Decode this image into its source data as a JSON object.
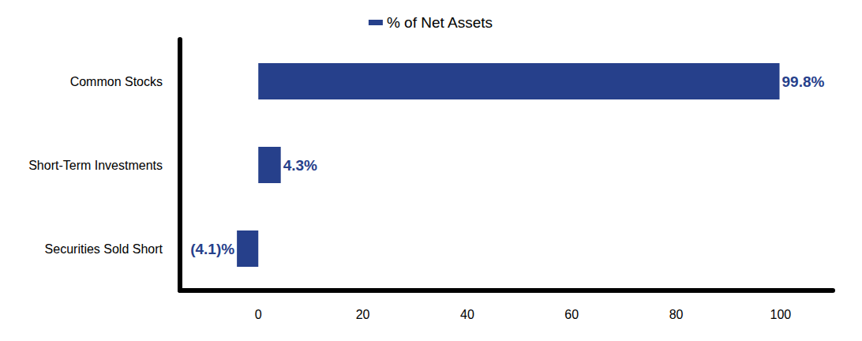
{
  "chart_data": {
    "type": "bar",
    "orientation": "horizontal",
    "categories": [
      "Common Stocks",
      "Short-Term Investments",
      "Securities Sold Short"
    ],
    "series": [
      {
        "name": "% of Net Assets",
        "color": "#26408b",
        "values": [
          99.8,
          4.3,
          -4.1
        ],
        "value_labels": [
          "99.8%",
          "4.3%",
          "(4.1)%"
        ]
      }
    ],
    "xlim": [
      -15,
      110
    ],
    "xticks": [
      0,
      20,
      40,
      60,
      80,
      100
    ],
    "grid": false,
    "legend": "top",
    "data_labels": true
  }
}
